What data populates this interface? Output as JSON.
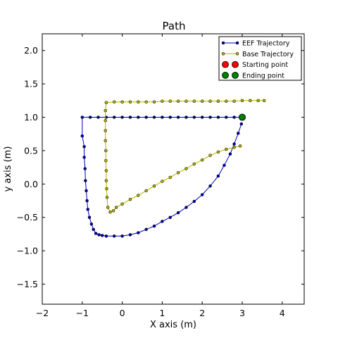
{
  "chart_data": {
    "type": "line",
    "title": "Path",
    "xlabel": "X axis (m)",
    "ylabel": "y axis (m)",
    "xlim": [
      -2,
      4.55
    ],
    "ylim": [
      -1.8,
      2.25
    ],
    "xticks": [
      -2,
      -1,
      0,
      1,
      2,
      3,
      4
    ],
    "yticks": [
      -1.5,
      -1.0,
      -0.5,
      0.0,
      0.5,
      1.0,
      1.5,
      2.0
    ],
    "xtick_labels": [
      "−2",
      "−1",
      "0",
      "1",
      "2",
      "3",
      "4"
    ],
    "ytick_labels": [
      "−1.5",
      "−1.0",
      "−0.5",
      "0.0",
      "0.5",
      "1.0",
      "1.5",
      "2.0"
    ],
    "grid": false,
    "legend_position": "top-right",
    "series": [
      {
        "name": "EEF Trajectory",
        "color": "#0000b0",
        "marker": "dot",
        "x": [
          3.0,
          2.8,
          2.6,
          2.4,
          2.2,
          2.0,
          1.8,
          1.6,
          1.4,
          1.2,
          1.0,
          0.8,
          0.6,
          0.4,
          0.2,
          0.0,
          -0.2,
          -0.4,
          -0.6,
          -0.8,
          -1.0,
          -1.0,
          -0.95,
          -0.95,
          -0.93,
          -0.92,
          -0.9,
          -0.88,
          -0.86,
          -0.82,
          -0.77,
          -0.72,
          -0.66,
          -0.58,
          -0.5,
          -0.4,
          -0.2,
          0.0,
          0.2,
          0.4,
          0.6,
          0.8,
          1.0,
          1.2,
          1.4,
          1.6,
          1.8,
          2.0,
          2.2,
          2.4,
          2.55,
          2.7,
          2.8,
          2.9,
          2.98
        ],
        "y": [
          1.0,
          1.0,
          1.0,
          1.0,
          1.0,
          1.0,
          1.0,
          1.0,
          1.0,
          1.0,
          1.0,
          1.0,
          1.0,
          1.0,
          1.0,
          1.0,
          1.0,
          1.0,
          1.0,
          1.0,
          1.0,
          0.72,
          0.56,
          0.4,
          0.23,
          0.05,
          -0.1,
          -0.25,
          -0.38,
          -0.5,
          -0.6,
          -0.68,
          -0.74,
          -0.76,
          -0.77,
          -0.78,
          -0.78,
          -0.78,
          -0.76,
          -0.73,
          -0.68,
          -0.63,
          -0.56,
          -0.5,
          -0.43,
          -0.35,
          -0.26,
          -0.16,
          -0.03,
          0.12,
          0.28,
          0.45,
          0.6,
          0.76,
          0.9
        ]
      },
      {
        "name": "Base Trajectory",
        "color": "#b0b000",
        "marker": "dot",
        "x": [
          3.55,
          3.4,
          3.2,
          3.0,
          2.8,
          2.6,
          2.4,
          2.2,
          2.0,
          1.8,
          1.6,
          1.4,
          1.2,
          1.0,
          0.8,
          0.6,
          0.4,
          0.2,
          0.0,
          -0.2,
          -0.4,
          -0.42,
          -0.42,
          -0.42,
          -0.42,
          -0.41,
          -0.41,
          -0.4,
          -0.4,
          -0.39,
          -0.38,
          -0.36,
          -0.3,
          -0.22,
          -0.15,
          0.0,
          0.2,
          0.4,
          0.6,
          0.8,
          1.0,
          1.2,
          1.4,
          1.6,
          1.8,
          2.0,
          2.2,
          2.4,
          2.6,
          2.8,
          2.95
        ],
        "y": [
          1.25,
          1.25,
          1.25,
          1.25,
          1.24,
          1.24,
          1.24,
          1.24,
          1.24,
          1.24,
          1.24,
          1.24,
          1.24,
          1.24,
          1.23,
          1.23,
          1.23,
          1.23,
          1.23,
          1.23,
          1.22,
          1.1,
          0.95,
          0.8,
          0.65,
          0.5,
          0.35,
          0.2,
          0.05,
          -0.07,
          -0.2,
          -0.35,
          -0.42,
          -0.4,
          -0.35,
          -0.3,
          -0.23,
          -0.17,
          -0.1,
          -0.03,
          0.04,
          0.1,
          0.17,
          0.23,
          0.3,
          0.36,
          0.43,
          0.48,
          0.52,
          0.55,
          0.57
        ]
      }
    ],
    "points": [
      {
        "name": "Starting point",
        "color": "#ff0000",
        "x": 3.0,
        "y": 1.0
      },
      {
        "name": "Ending point",
        "color": "#008000",
        "x": 3.0,
        "y": 1.0
      }
    ]
  }
}
